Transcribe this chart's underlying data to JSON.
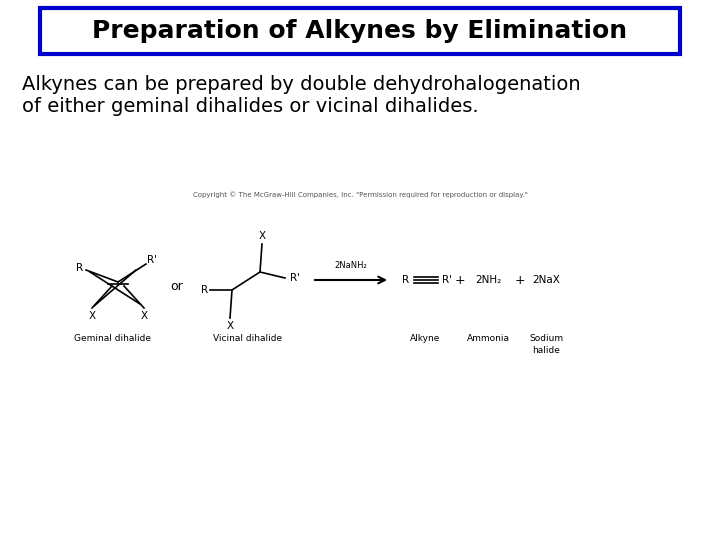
{
  "bg_color": "#ffffff",
  "title_text": "Preparation of Alkynes by Elimination",
  "title_box_color": "#0000cc",
  "title_bg": "#ffffff",
  "title_fontsize": 18,
  "title_fontweight": "bold",
  "body_text_line1": "Alkynes can be prepared by double dehydrohalogenation",
  "body_text_line2": "of either geminal dihalides or vicinal dihalides.",
  "body_fontsize": 14,
  "copyright_text": "Copyright © The McGraw-Hill Companies, Inc. \"Permission required for reproduction or display.\"",
  "copyright_fontsize": 5.0,
  "lw": 1.2,
  "color": "#000000",
  "fs_label": 7.5,
  "fs_small": 6.0,
  "fs_caption": 6.5
}
